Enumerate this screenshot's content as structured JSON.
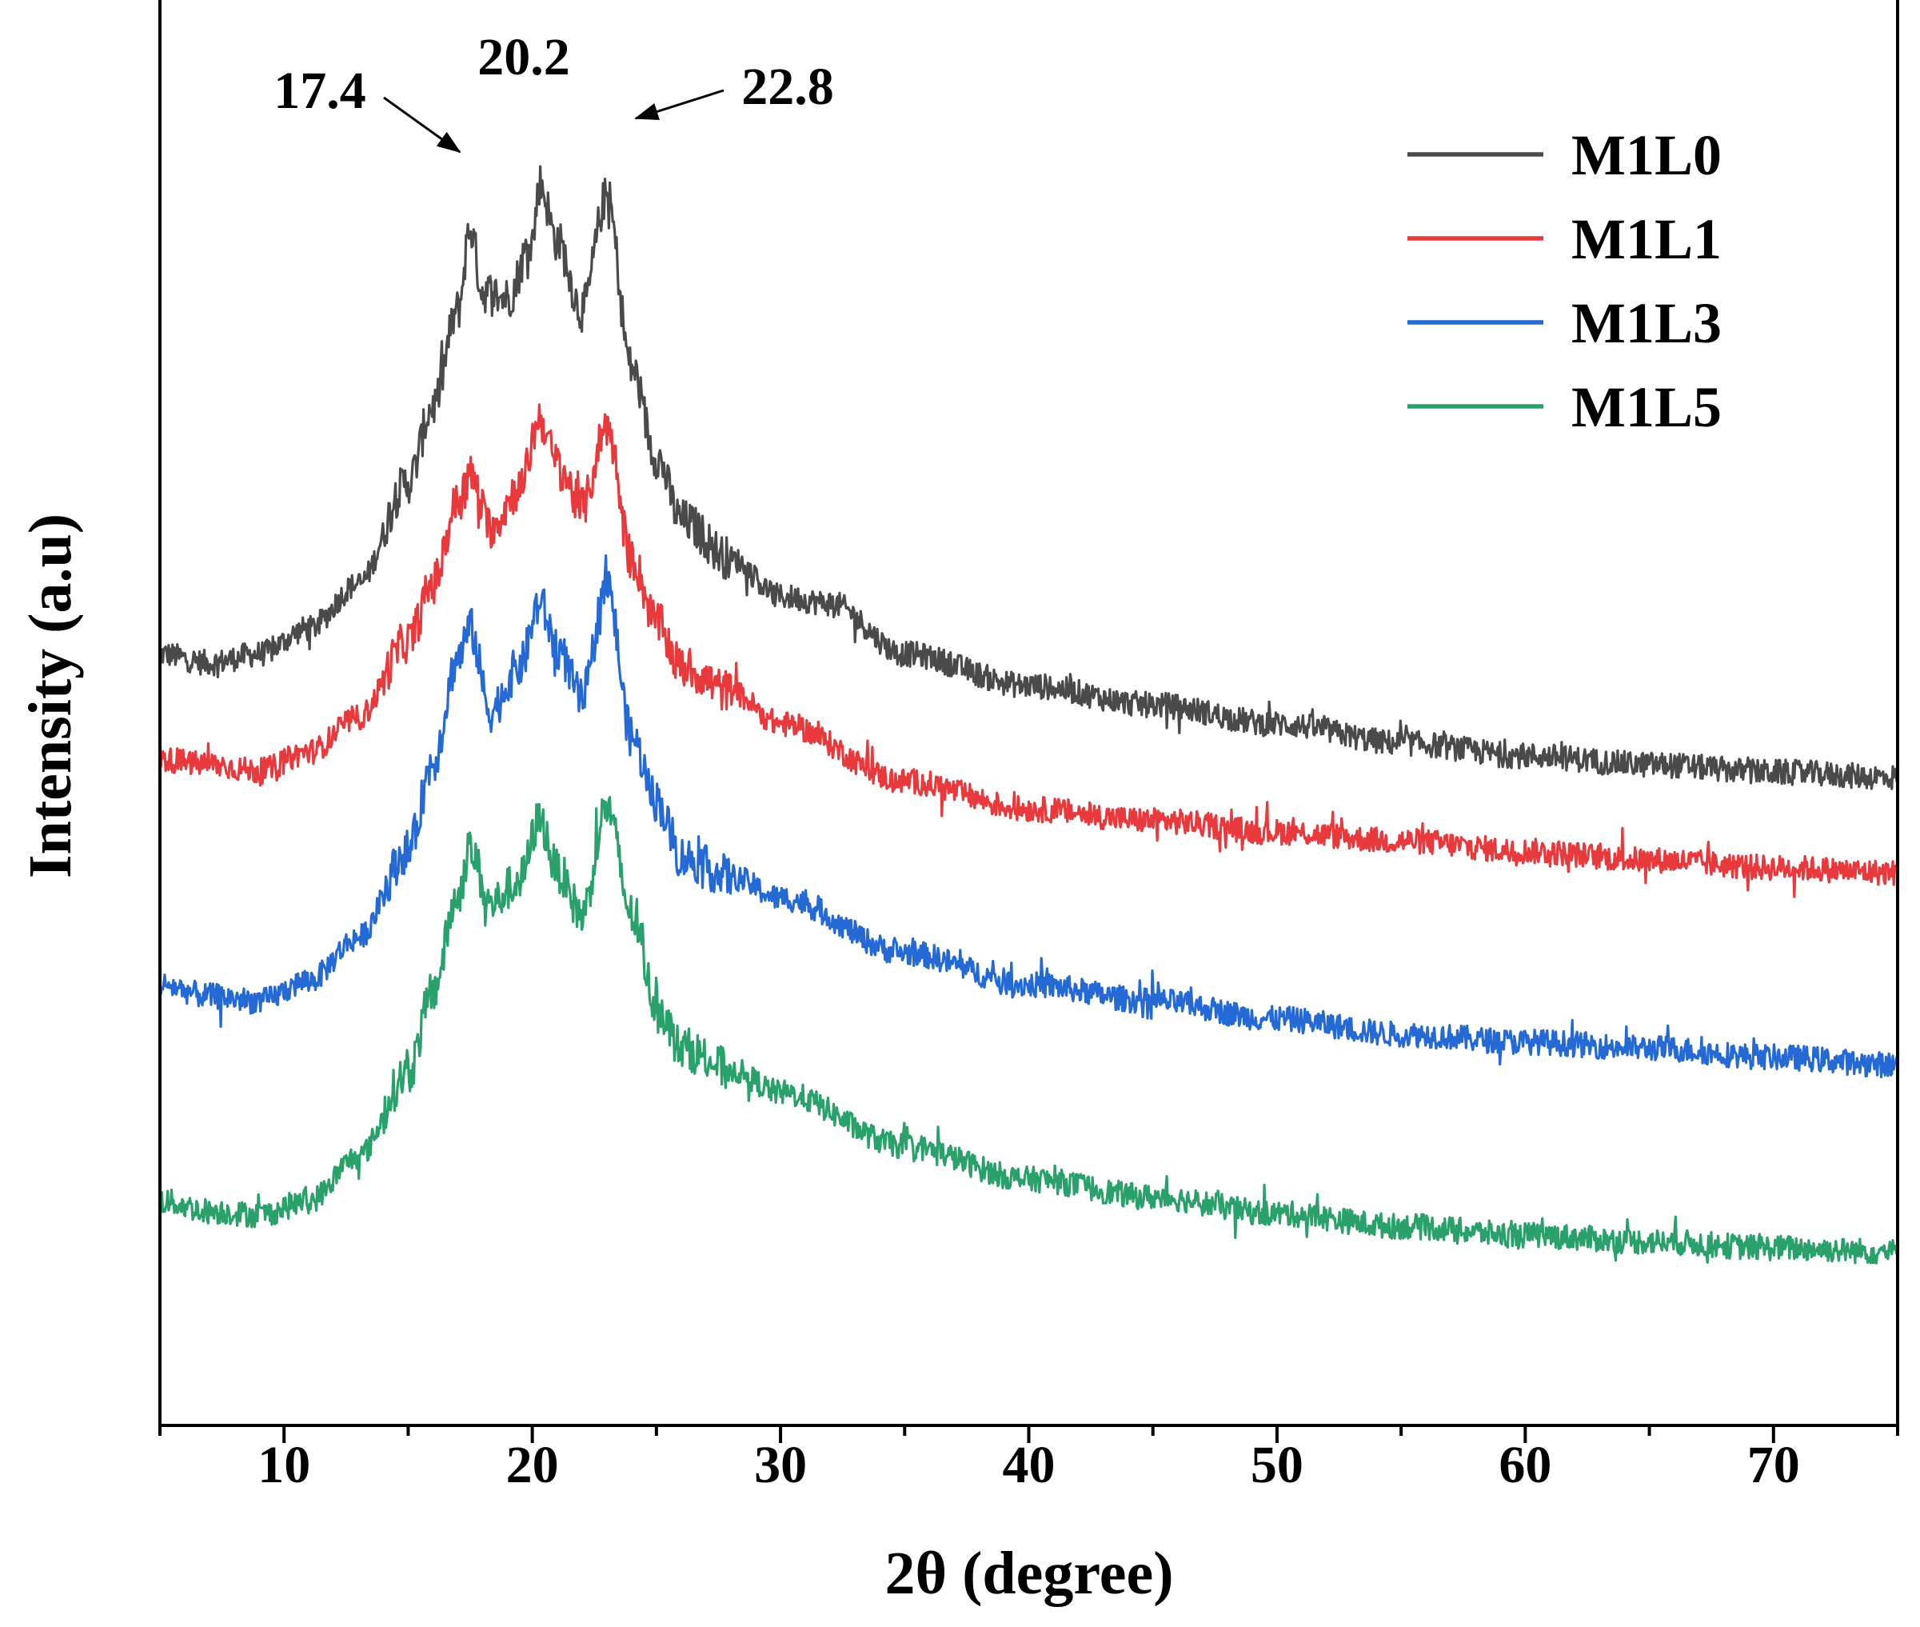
{
  "chart_data": {
    "type": "line",
    "title": "",
    "xlabel": "2θ (degree)",
    "ylabel": "Intensity (a.u)",
    "xlim": [
      5,
      75
    ],
    "ylim": [
      0,
      100
    ],
    "x_ticks": [
      10,
      20,
      30,
      40,
      50,
      60,
      70
    ],
    "x_minor_step": 5,
    "grid": false,
    "legend_position": "top-right",
    "y_ticks_shown": false,
    "annotations": [
      {
        "text": "17.4",
        "x": 17.4
      },
      {
        "text": "20.2",
        "x": 20.2
      },
      {
        "text": "22.8",
        "x": 22.8
      }
    ],
    "noise_amplitude": 1.0,
    "series": [
      {
        "name": "M1L0",
        "color": "#4a4a4a",
        "anchors": [
          [
            5,
            55.5
          ],
          [
            7,
            54.8
          ],
          [
            9,
            55.5
          ],
          [
            11,
            57.5
          ],
          [
            13,
            61
          ],
          [
            15,
            69
          ],
          [
            16,
            75
          ],
          [
            17,
            82.5
          ],
          [
            17.5,
            89
          ],
          [
            18,
            84
          ],
          [
            19,
            83.5
          ],
          [
            20,
            88
          ],
          [
            20.3,
            92.5
          ],
          [
            21,
            88
          ],
          [
            22,
            82.5
          ],
          [
            23,
            91.5
          ],
          [
            24,
            78
          ],
          [
            25,
            71
          ],
          [
            26,
            66
          ],
          [
            28,
            63
          ],
          [
            30,
            60
          ],
          [
            32,
            59.5
          ],
          [
            35,
            55.5
          ],
          [
            40,
            53
          ],
          [
            45,
            51.5
          ],
          [
            50,
            50
          ],
          [
            55,
            48.5
          ],
          [
            60,
            47.5
          ],
          [
            65,
            46.8
          ],
          [
            70,
            46.2
          ],
          [
            75,
            45.8
          ]
        ]
      },
      {
        "name": "M1L1",
        "color": "#e8393c",
        "anchors": [
          [
            5,
            47.2
          ],
          [
            7,
            46.8
          ],
          [
            9,
            46.3
          ],
          [
            11,
            47.8
          ],
          [
            13,
            50.5
          ],
          [
            15,
            56.5
          ],
          [
            16,
            61
          ],
          [
            17,
            67.5
          ],
          [
            17.5,
            69.5
          ],
          [
            18.3,
            65.5
          ],
          [
            19.5,
            68.5
          ],
          [
            20.3,
            74
          ],
          [
            21,
            70.5
          ],
          [
            22,
            67
          ],
          [
            23,
            73.5
          ],
          [
            24,
            63
          ],
          [
            25,
            58
          ],
          [
            26,
            54.5
          ],
          [
            28,
            52.5
          ],
          [
            30,
            50
          ],
          [
            35,
            45.5
          ],
          [
            40,
            43.3
          ],
          [
            45,
            42.4
          ],
          [
            50,
            41.5
          ],
          [
            55,
            40.8
          ],
          [
            60,
            40
          ],
          [
            65,
            39.3
          ],
          [
            70,
            38.7
          ],
          [
            75,
            38.3
          ]
        ]
      },
      {
        "name": "M1L3",
        "color": "#2469d4",
        "anchors": [
          [
            5,
            29.5
          ],
          [
            7,
            28.6
          ],
          [
            9,
            28.2
          ],
          [
            11,
            29.8
          ],
          [
            13,
            33.2
          ],
          [
            15,
            40
          ],
          [
            16,
            47
          ],
          [
            17,
            55.2
          ],
          [
            17.5,
            57.5
          ],
          [
            18.3,
            51
          ],
          [
            19.5,
            54.5
          ],
          [
            20.3,
            59.5
          ],
          [
            21,
            56
          ],
          [
            22,
            52
          ],
          [
            23,
            61
          ],
          [
            24,
            49
          ],
          [
            25,
            44
          ],
          [
            26,
            39.5
          ],
          [
            28,
            38
          ],
          [
            30,
            36.3
          ],
          [
            35,
            32
          ],
          [
            40,
            29.5
          ],
          [
            45,
            28.2
          ],
          [
            50,
            26.8
          ],
          [
            55,
            25.6
          ],
          [
            60,
            25
          ],
          [
            65,
            24.5
          ],
          [
            70,
            23.8
          ],
          [
            75,
            23.2
          ]
        ]
      },
      {
        "name": "M1L5",
        "color": "#2aa06a",
        "anchors": [
          [
            5,
            12.5
          ],
          [
            7,
            11.7
          ],
          [
            9,
            11.4
          ],
          [
            11,
            12.5
          ],
          [
            13,
            16
          ],
          [
            15,
            22.5
          ],
          [
            16,
            29
          ],
          [
            17,
            36.5
          ],
          [
            17.5,
            40.2
          ],
          [
            18.3,
            35.8
          ],
          [
            19.5,
            37.7
          ],
          [
            20.3,
            42.5
          ],
          [
            21,
            38.5
          ],
          [
            22,
            35
          ],
          [
            23,
            43.5
          ],
          [
            24,
            35
          ],
          [
            25,
            28
          ],
          [
            26,
            24.5
          ],
          [
            28,
            22.8
          ],
          [
            30,
            21
          ],
          [
            35,
            16.8
          ],
          [
            40,
            14.2
          ],
          [
            45,
            12.8
          ],
          [
            50,
            11.5
          ],
          [
            55,
            10.5
          ],
          [
            60,
            9.8
          ],
          [
            65,
            9.3
          ],
          [
            70,
            8.8
          ],
          [
            75,
            8.5
          ]
        ]
      }
    ]
  }
}
